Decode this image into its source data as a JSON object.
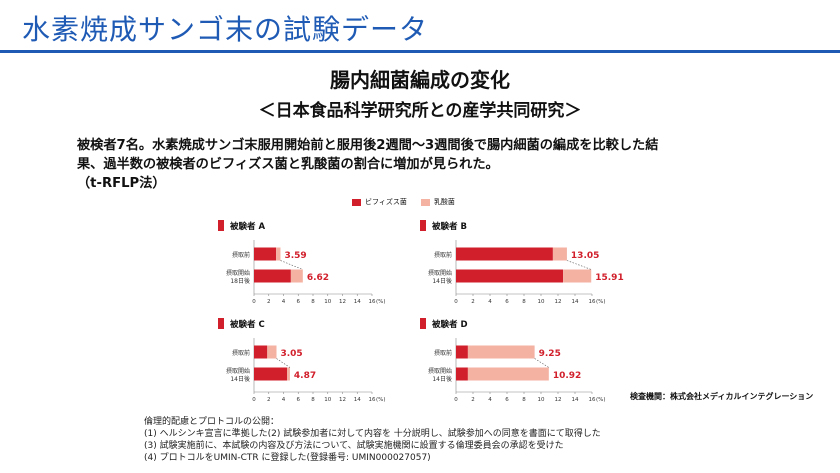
{
  "header": {
    "title": "水素焼成サンゴ末の試験データ"
  },
  "subtitle": "腸内細菌編成の変化",
  "subtitle2": "＜日本食品科学研究所との産学共同研究＞",
  "description": [
    "被検者7名。水素焼成サンゴ末服用開始前と服用後2週間～3週間後で腸内細菌の編成を比較した結",
    "果、過半数の被検者のビフィズス菌と乳酸菌の割合に増加が見られた。",
    "（t-RFLP法）"
  ],
  "legend": [
    {
      "label": "ビフィズス菌",
      "color": "#d11f2b"
    },
    {
      "label": "乳酸菌",
      "color": "#f4b2a3"
    }
  ],
  "chart_data": [
    {
      "type": "bar",
      "title": "被験者 A",
      "categories": [
        "摂取前",
        "摂取開始\n18日後"
      ],
      "series": [
        {
          "name": "ビフィズス菌",
          "values": [
            3.0,
            5.0
          ]
        },
        {
          "name": "乳酸菌",
          "values": [
            0.59,
            1.62
          ]
        }
      ],
      "totals_labels": [
        "3.59",
        "6.62"
      ],
      "xticks": [
        "0",
        "2",
        "4",
        "6",
        "8",
        "10",
        "12",
        "14",
        "16"
      ],
      "xunit": "(%)",
      "xlim": [
        0,
        16
      ]
    },
    {
      "type": "bar",
      "title": "被験者 B",
      "categories": [
        "摂取前",
        "摂取開始\n14日後"
      ],
      "series": [
        {
          "name": "ビフィズス菌",
          "values": [
            11.4,
            12.6
          ]
        },
        {
          "name": "乳酸菌",
          "values": [
            1.65,
            3.31
          ]
        }
      ],
      "totals_labels": [
        "13.05",
        "15.91"
      ],
      "xticks": [
        "0",
        "2",
        "4",
        "6",
        "8",
        "10",
        "12",
        "14",
        "16"
      ],
      "xunit": "(%)",
      "xlim": [
        0,
        16
      ]
    },
    {
      "type": "bar",
      "title": "被験者 C",
      "categories": [
        "摂取前",
        "摂取開始\n14日後"
      ],
      "series": [
        {
          "name": "ビフィズス菌",
          "values": [
            1.8,
            4.5
          ]
        },
        {
          "name": "乳酸菌",
          "values": [
            1.25,
            0.37
          ]
        }
      ],
      "totals_labels": [
        "3.05",
        "4.87"
      ],
      "xticks": [
        "0",
        "2",
        "4",
        "6",
        "8",
        "10",
        "12",
        "14",
        "16"
      ],
      "xunit": "(%)",
      "xlim": [
        0,
        16
      ]
    },
    {
      "type": "bar",
      "title": "被験者 D",
      "categories": [
        "摂取前",
        "摂取開始\n14日後"
      ],
      "series": [
        {
          "name": "ビフィズス菌",
          "values": [
            1.4,
            1.4
          ]
        },
        {
          "name": "乳酸菌",
          "values": [
            7.85,
            9.52
          ]
        }
      ],
      "totals_labels": [
        "9.25",
        "10.92"
      ],
      "xticks": [
        "0",
        "2",
        "4",
        "6",
        "8",
        "10",
        "12",
        "14",
        "16"
      ],
      "xunit": "(%)",
      "xlim": [
        0,
        16
      ]
    }
  ],
  "inspection": "検査機関：株式会社メディカルインテグレーション",
  "footer": [
    "倫理的配慮とプロトコルの公開：",
    "(1) ヘルシンキ宣言に準拠した(2) 試験参加者に対して内容を 十分説明し、試験参加への同意を書面にて取得した",
    "(3) 試験実施前に、本試験の内容及び方法について、試験実施機関に設置する倫理委員会の承認を受けた",
    "(4) プロトコルをUMIN-CTR に登録した(登録番号: UMIN000027057)"
  ]
}
